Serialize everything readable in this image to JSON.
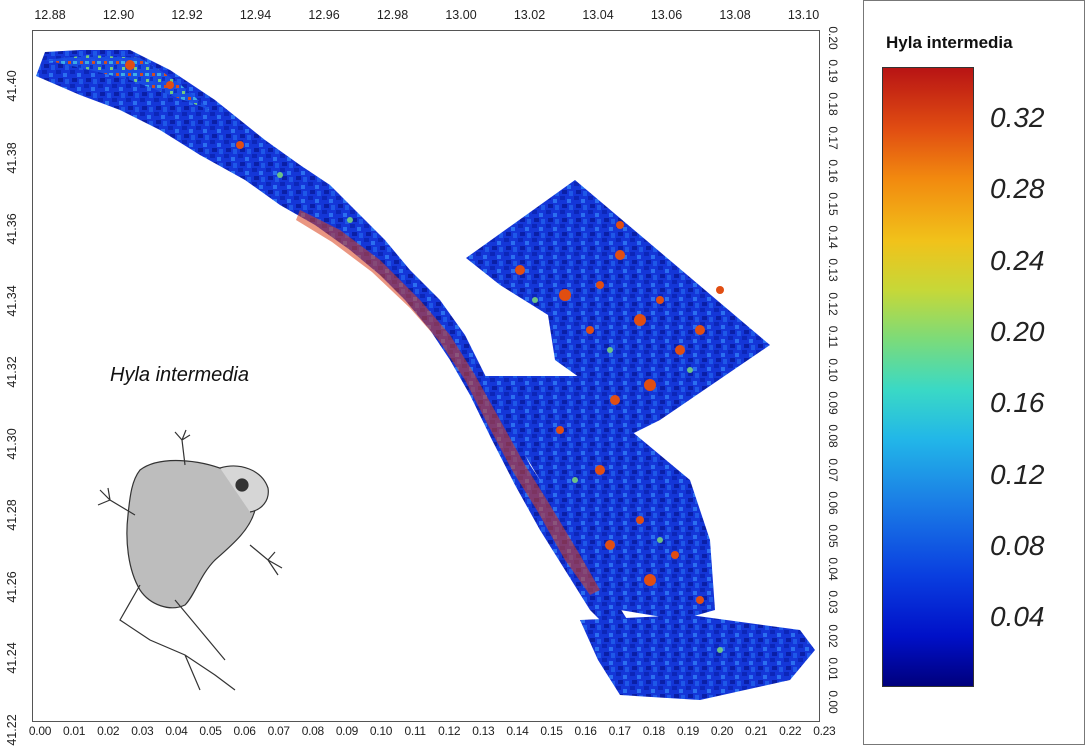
{
  "legend": {
    "title": "Hyla intermedia",
    "labels": [
      "0.32",
      "0.28",
      "0.24",
      "0.20",
      "0.16",
      "0.12",
      "0.08",
      "0.04"
    ],
    "colors": [
      "#00007d",
      "#1b7fe6",
      "#3ad9c5",
      "#c6d838",
      "#f28a0f",
      "#b81414"
    ]
  },
  "map": {
    "species_label": "Hyla intermedia",
    "top_ticks": [
      "12.88",
      "12.90",
      "12.92",
      "12.94",
      "12.96",
      "12.98",
      "13.00",
      "13.02",
      "13.04",
      "13.06",
      "13.08",
      "13.10"
    ],
    "left_ticks": [
      "41.40",
      "41.38",
      "41.36",
      "41.34",
      "41.32",
      "41.30",
      "41.28",
      "41.26",
      "41.24",
      "41.22"
    ],
    "bottom_ticks": [
      "0.00",
      "0.01",
      "0.02",
      "0.03",
      "0.04",
      "0.05",
      "0.06",
      "0.07",
      "0.08",
      "0.09",
      "0.10",
      "0.11",
      "0.12",
      "0.13",
      "0.14",
      "0.15",
      "0.16",
      "0.17",
      "0.18",
      "0.19",
      "0.20",
      "0.21",
      "0.22",
      "0.23"
    ],
    "right_ticks": [
      "0.20",
      "0.19",
      "0.18",
      "0.17",
      "0.16",
      "0.15",
      "0.14",
      "0.13",
      "0.12",
      "0.11",
      "0.10",
      "0.09",
      "0.08",
      "0.07",
      "0.06",
      "0.05",
      "0.04",
      "0.03",
      "0.02",
      "0.01",
      "0.00"
    ]
  }
}
